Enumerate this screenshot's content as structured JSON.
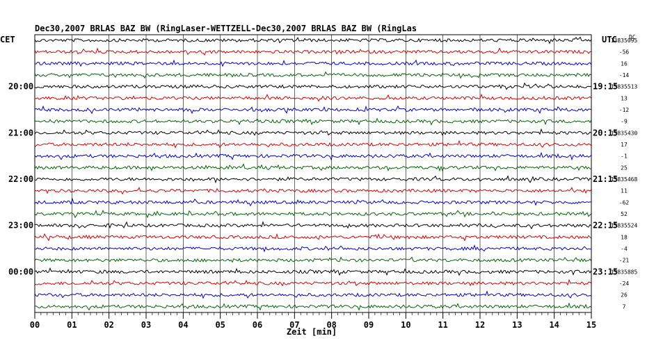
{
  "chart_data": {
    "type": "line",
    "title": "Dec30,2007   BRLAS BAZ BW (RingLaser-WETTZELL-Dec30,2007   BRLAS BAZ BW (RingLas",
    "left_label": "CET",
    "right_label": "UTC",
    "right_top_marker": "DC",
    "xlabel": "Zeit [min]",
    "xlim": [
      0,
      15
    ],
    "x_ticks": [
      "00",
      "01",
      "02",
      "03",
      "04",
      "05",
      "06",
      "07",
      "08",
      "09",
      "10",
      "11",
      "12",
      "13",
      "14",
      "15"
    ],
    "grid": true,
    "colors": [
      "#000000",
      "#dd0000",
      "#0000cc",
      "#006600"
    ],
    "hour_groups": [
      {
        "cet": "",
        "utc": "",
        "offsets": [
          "13835095",
          "-56",
          "16",
          "-14"
        ]
      },
      {
        "cet": "20:00",
        "utc": "19:15",
        "offsets": [
          "13835513",
          "13",
          "-12",
          "-9"
        ]
      },
      {
        "cet": "21:00",
        "utc": "20:15",
        "offsets": [
          "13835430",
          "17",
          "-1",
          "25"
        ]
      },
      {
        "cet": "22:00",
        "utc": "21:15",
        "offsets": [
          "13835468",
          "11",
          "-62",
          "52"
        ]
      },
      {
        "cet": "23:00",
        "utc": "22:15",
        "offsets": [
          "13835524",
          "18",
          "-4",
          "-21"
        ]
      },
      {
        "cet": "00:00",
        "utc": "23:15",
        "offsets": [
          "13835885",
          "-24",
          "26",
          "7"
        ]
      }
    ]
  }
}
